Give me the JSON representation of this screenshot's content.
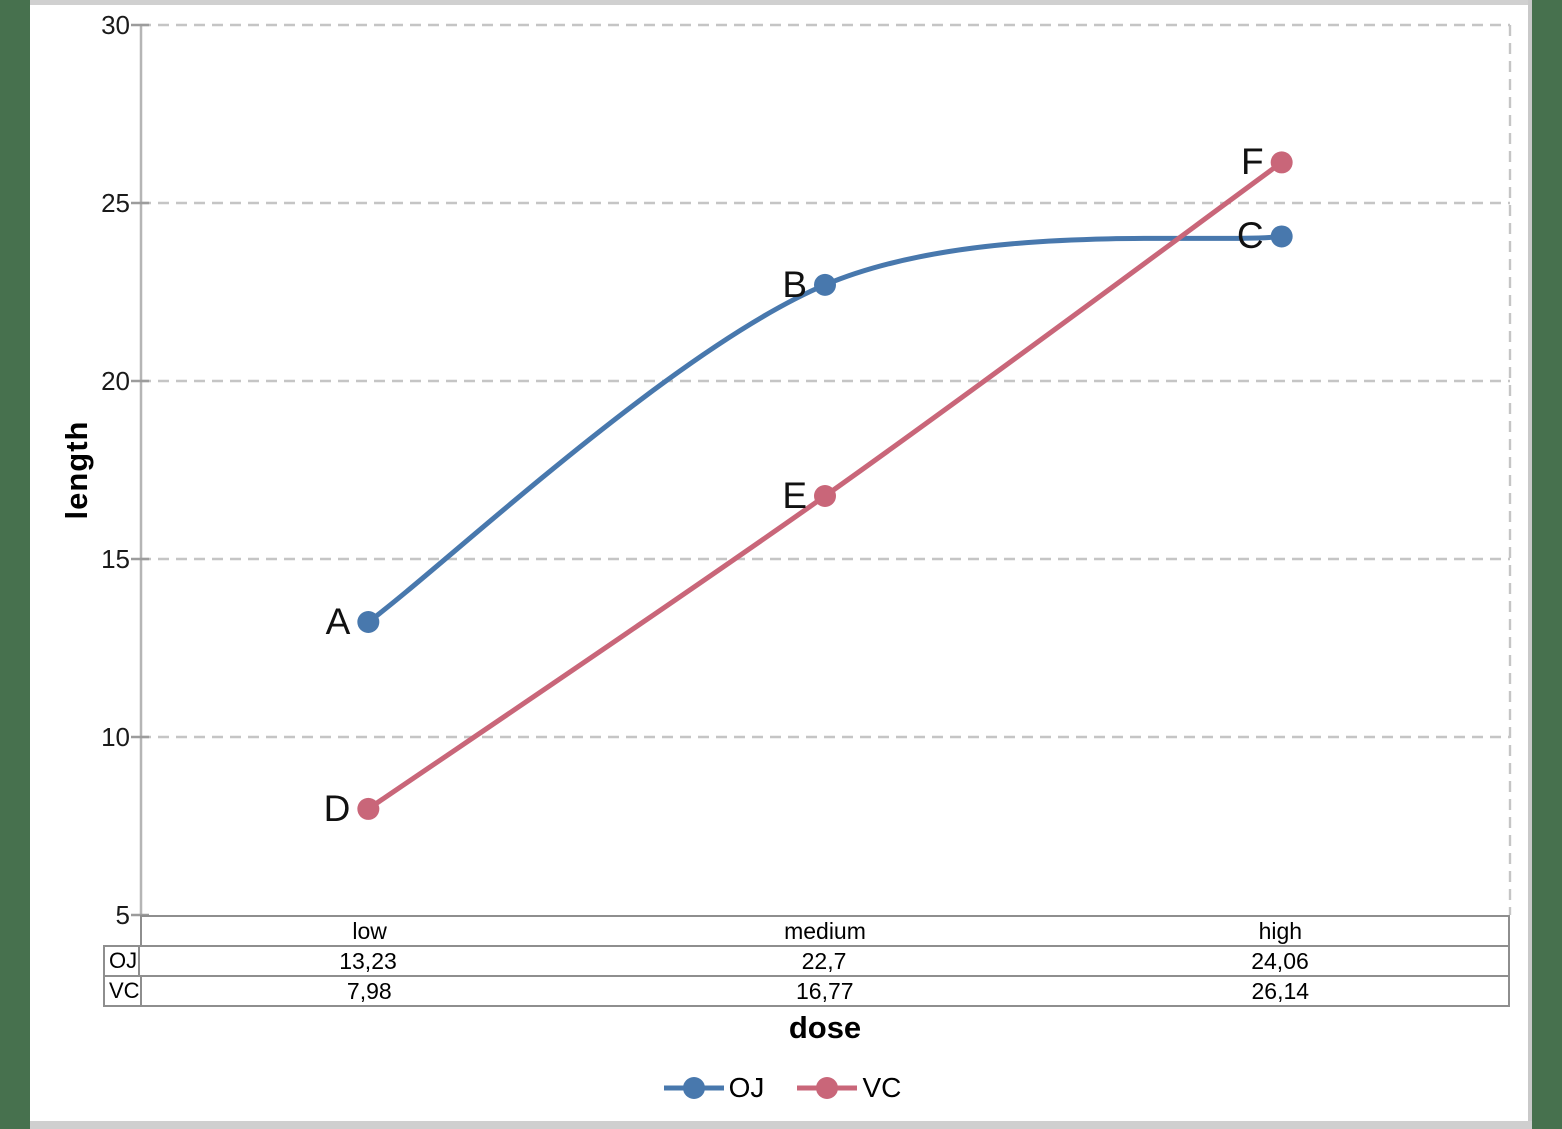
{
  "chart_data": {
    "type": "line",
    "smoothed": true,
    "categories": [
      "low",
      "medium",
      "high"
    ],
    "series": [
      {
        "name": "OJ",
        "color": "#4878AD",
        "values": [
          13.23,
          22.7,
          24.06
        ],
        "point_labels": [
          "A",
          "B",
          "C"
        ]
      },
      {
        "name": "VC",
        "color": "#C96679",
        "values": [
          7.98,
          16.77,
          26.14
        ],
        "point_labels": [
          "D",
          "E",
          "F"
        ]
      }
    ],
    "xlabel": "dose",
    "ylabel": "length",
    "ylim": [
      5,
      30
    ],
    "y_ticks": [
      5,
      10,
      15,
      20,
      25,
      30
    ],
    "grid": "horizontal-dashed",
    "legend_position": "bottom"
  },
  "data_table": {
    "column_headers": [
      "low",
      "medium",
      "high"
    ],
    "row_headers": [
      "OJ",
      "VC"
    ],
    "rows": [
      [
        "13,23",
        "22,7",
        "24,06"
      ],
      [
        "7,98",
        "16,77",
        "26,14"
      ]
    ]
  },
  "colors": {
    "oj_blue": "#4878AD",
    "vc_red": "#C96679",
    "frame_green": "#47714E",
    "gridline_gray": "#C5C5C5",
    "axis_gray": "#B5B5B5",
    "table_border_gray": "#8E8E8E"
  }
}
